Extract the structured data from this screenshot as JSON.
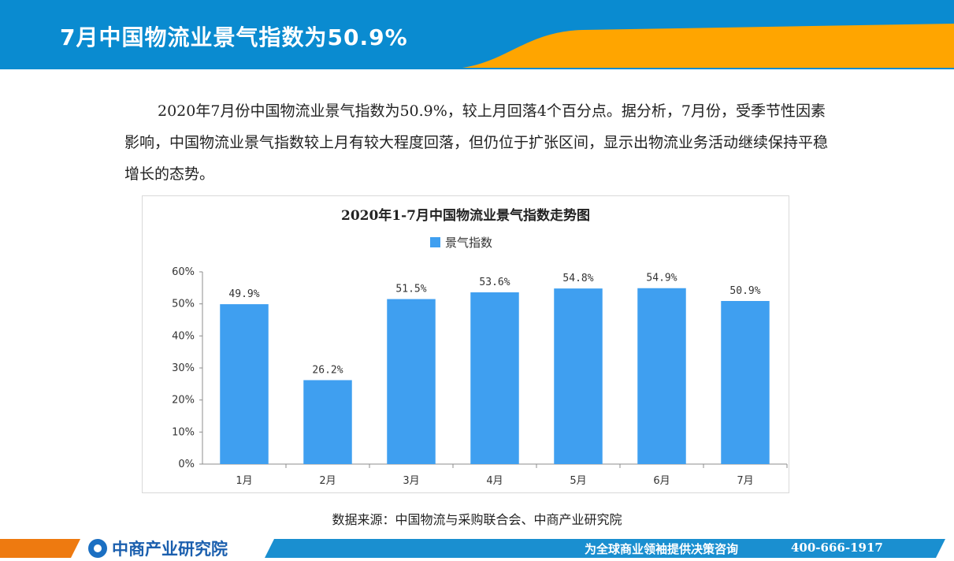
{
  "header": {
    "title": "7月中国物流业景气指数为50.9%"
  },
  "body": {
    "paragraph": "2020年7月份中国物流业景气指数为50.9%，较上月回落4个百分点。据分析，7月份，受季节性因素影响，中国物流业景气指数较上月有较大程度回落，但仍位于扩张区间，显示出物流业务活动继续保持平稳增长的态势。"
  },
  "chart_data": {
    "type": "bar",
    "title": "2020年1-7月中国物流业景气指数走势图",
    "categories": [
      "1月",
      "2月",
      "3月",
      "4月",
      "5月",
      "6月",
      "7月"
    ],
    "series": [
      {
        "name": "景气指数",
        "values": [
          49.9,
          26.2,
          51.5,
          53.6,
          54.8,
          54.9,
          50.9
        ],
        "color": "#3f9ff0"
      }
    ],
    "data_labels": [
      "49.9%",
      "26.2%",
      "51.5%",
      "53.6%",
      "54.8%",
      "54.9%",
      "50.9%"
    ],
    "yticks": [
      "0%",
      "10%",
      "20%",
      "30%",
      "40%",
      "50%",
      "60%"
    ],
    "ylim": [
      0,
      60
    ],
    "legend": "top-center",
    "grid": false
  },
  "source": "数据来源：中国物流与采购联合会、中商产业研究院",
  "footer": {
    "logo_text": "中商产业研究院",
    "slogan": "为全球商业领袖提供决策咨询",
    "phone": "400-666-1917"
  },
  "colors": {
    "header_blue": "#0a8bd0",
    "header_orange": "#ffa500",
    "bar": "#3f9ff0",
    "footer_blue": "#1a8fd0",
    "footer_orange": "#ee7a10"
  }
}
